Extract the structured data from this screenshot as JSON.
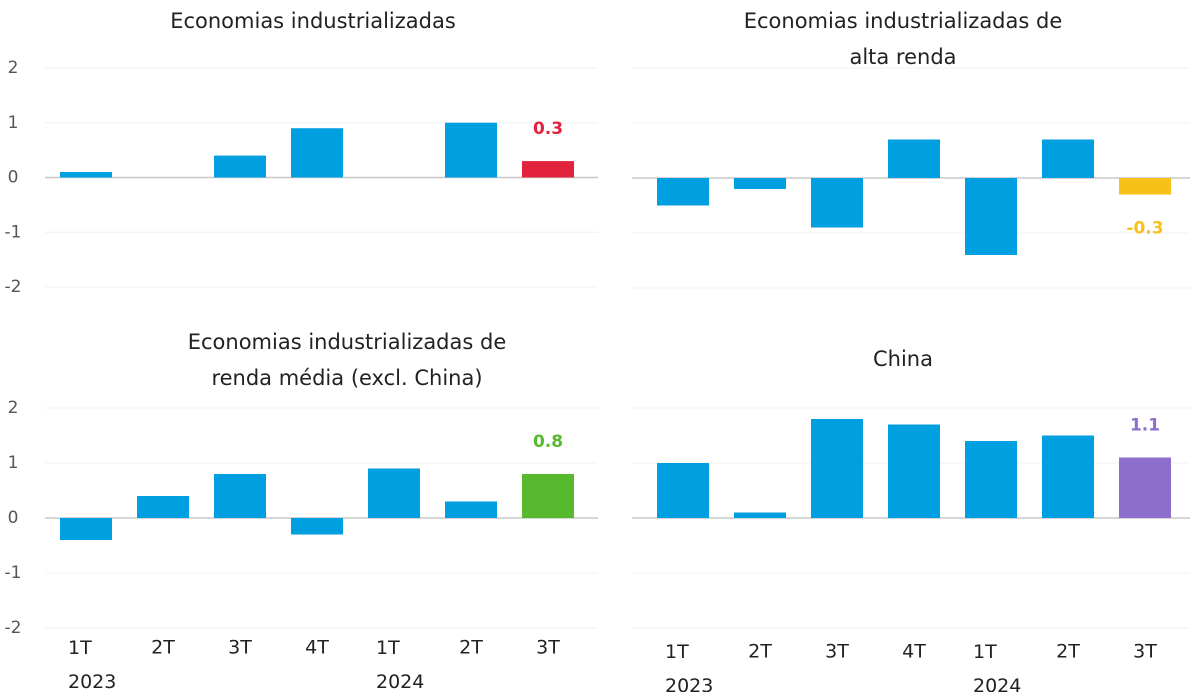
{
  "chart_data": [
    {
      "type": "bar",
      "title": [
        "Economias industrializadas"
      ],
      "values": [
        0.1,
        0,
        0.4,
        0.9,
        0,
        1.0,
        0.3
      ],
      "value_labels": [
        null,
        null,
        null,
        null,
        null,
        null,
        "0.3"
      ],
      "colors": [
        "#009fdf",
        "#009fdf",
        "#009fdf",
        "#009fdf",
        "#009fdf",
        "#009fdf",
        "#e2233d"
      ],
      "ylim": [
        -2,
        2
      ],
      "yticks": [
        -2,
        -1,
        0,
        1,
        2
      ],
      "ytick_labels": true,
      "grid": true
    },
    {
      "type": "bar",
      "title": [
        "Economias industrializadas de",
        "alta renda"
      ],
      "values": [
        -0.5,
        -0.2,
        -0.9,
        0.7,
        -1.4,
        0.7,
        -0.3
      ],
      "value_labels": [
        null,
        null,
        null,
        null,
        null,
        null,
        "-0.3"
      ],
      "colors": [
        "#009fdf",
        "#009fdf",
        "#009fdf",
        "#009fdf",
        "#009fdf",
        "#009fdf",
        "#f7c11a"
      ],
      "ylim": [
        -2,
        2
      ],
      "yticks": [
        -2,
        -1,
        0,
        1,
        2
      ],
      "ytick_labels": false,
      "grid": true
    },
    {
      "type": "bar",
      "title": [
        "Economias industrializadas de",
        "renda média (excl. China)"
      ],
      "categories": [
        "1T\n2023",
        "2T",
        "3T",
        "4T",
        "1T\n2024",
        "2T",
        "3T"
      ],
      "values": [
        -0.4,
        0.4,
        0.8,
        -0.3,
        0.9,
        0.3,
        0.8
      ],
      "value_labels": [
        null,
        null,
        null,
        null,
        null,
        null,
        "0.8"
      ],
      "colors": [
        "#009fdf",
        "#009fdf",
        "#009fdf",
        "#009fdf",
        "#009fdf",
        "#009fdf",
        "#57ba2e"
      ],
      "ylim": [
        -2,
        2
      ],
      "yticks": [
        -2,
        -1,
        0,
        1,
        2
      ],
      "ytick_labels": true,
      "grid": true
    },
    {
      "type": "bar",
      "title": [
        "China"
      ],
      "categories": [
        "1T\n2023",
        "2T",
        "3T",
        "4T",
        "1T\n2024",
        "2T",
        "3T"
      ],
      "values": [
        1.0,
        0.1,
        1.8,
        1.7,
        1.4,
        1.5,
        1.1
      ],
      "value_labels": [
        null,
        null,
        null,
        null,
        null,
        null,
        "1.1"
      ],
      "colors": [
        "#009fdf",
        "#009fdf",
        "#009fdf",
        "#009fdf",
        "#009fdf",
        "#009fdf",
        "#8d6ecd"
      ],
      "ylim": [
        -2,
        2
      ],
      "yticks": [
        -2,
        -1,
        0,
        1,
        2
      ],
      "ytick_labels": false,
      "grid": true
    }
  ]
}
